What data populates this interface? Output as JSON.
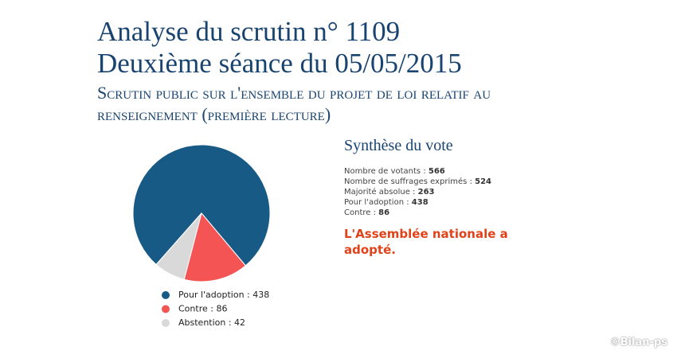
{
  "header": {
    "title": "Analyse du scrutin n° 1109",
    "session": "Deuxième séance du 05/05/2015",
    "subtitle": "Scrutin public sur l'ensemble du projet de loi relatif au renseignement (première lecture)"
  },
  "summary": {
    "title": "Synthèse du vote",
    "stats": [
      {
        "label": "Nombre de votants :",
        "value": "566"
      },
      {
        "label": "Nombre de suffrages exprimés :",
        "value": "524"
      },
      {
        "label": "Majorité absolue :",
        "value": "263"
      },
      {
        "label": "Pour l'adoption :",
        "value": "438"
      },
      {
        "label": "Contre :",
        "value": "86"
      }
    ],
    "result": "L'Assemblée nationale a adopté."
  },
  "watermark": "©Bilan-ps",
  "chart_data": {
    "type": "pie",
    "categories": [
      "Pour l'adoption : 438",
      "Contre : 86",
      "Abstention : 42"
    ],
    "values": [
      438,
      86,
      42
    ],
    "colors": [
      "#175a85",
      "#f45454",
      "#d9d9d9"
    ]
  }
}
